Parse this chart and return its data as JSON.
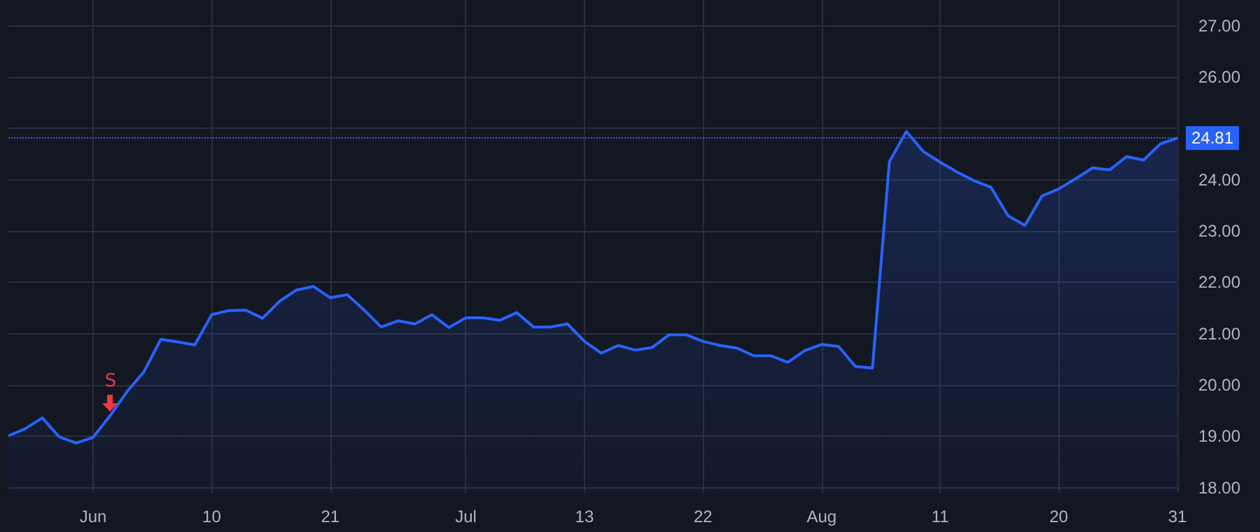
{
  "chart_data": {
    "type": "area",
    "categories": [
      null,
      null,
      null,
      null,
      null,
      "Jun",
      null,
      null,
      null,
      null,
      null,
      null,
      "10",
      null,
      null,
      null,
      null,
      null,
      null,
      "21",
      null,
      null,
      null,
      null,
      null,
      null,
      null,
      "Jul",
      null,
      null,
      null,
      null,
      null,
      null,
      "13",
      null,
      null,
      null,
      null,
      null,
      null,
      "22",
      null,
      null,
      null,
      null,
      null,
      null,
      "Aug",
      null,
      null,
      null,
      null,
      null,
      null,
      "11",
      null,
      null,
      null,
      null,
      null,
      null,
      "20",
      null,
      null,
      null,
      null,
      null,
      null,
      "31"
    ],
    "series": [
      {
        "color": "#2962ff",
        "values": [
          19.01,
          19.15,
          19.36,
          18.99,
          18.87,
          18.98,
          19.4,
          19.87,
          20.26,
          20.89,
          20.84,
          20.78,
          21.37,
          21.45,
          21.46,
          21.3,
          21.63,
          21.85,
          21.92,
          21.7,
          21.76,
          21.46,
          21.13,
          21.25,
          21.19,
          21.37,
          21.12,
          21.31,
          21.31,
          21.26,
          21.41,
          21.13,
          21.13,
          21.19,
          20.85,
          20.62,
          20.77,
          20.68,
          20.73,
          20.98,
          20.98,
          20.85,
          20.77,
          20.72,
          20.57,
          20.57,
          20.44,
          20.67,
          20.79,
          20.75,
          20.36,
          20.33,
          24.35,
          24.94,
          24.55,
          24.34,
          24.15,
          23.98,
          23.85,
          23.3,
          23.11,
          23.68,
          23.82,
          24.02,
          24.23,
          24.19,
          24.45,
          24.38,
          24.7,
          24.81
        ]
      }
    ],
    "ylim": [
      17.9,
      27.5
    ],
    "yticks": [
      {
        "value": 18,
        "label": "18.00"
      },
      {
        "value": 19,
        "label": "19.00"
      },
      {
        "value": 20,
        "label": "20.00"
      },
      {
        "value": 21,
        "label": "21.00"
      },
      {
        "value": 22,
        "label": "22.00"
      },
      {
        "value": 23,
        "label": "23.00"
      },
      {
        "value": 24,
        "label": "24.00"
      },
      {
        "value": 25,
        "label": null
      },
      {
        "value": 26,
        "label": "26.00"
      },
      {
        "value": 27,
        "label": "27.00"
      }
    ],
    "ref_lines": [
      {
        "axis": "y",
        "value": 24.81,
        "label": "24.81",
        "color": "#2962ff",
        "line_style": "dotted"
      }
    ],
    "annotations": [
      "S"
    ],
    "grid": true,
    "marker": "none",
    "line_style": "solid"
  }
}
